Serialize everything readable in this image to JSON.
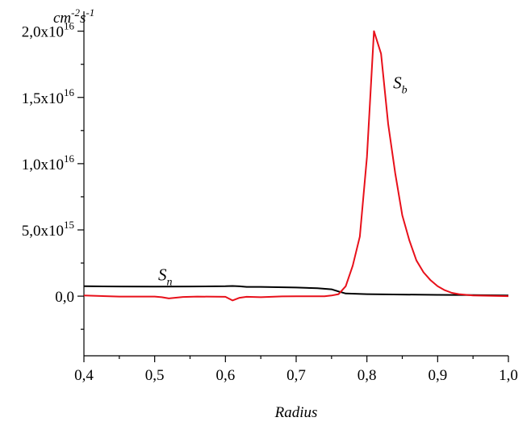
{
  "chart_data": {
    "type": "line",
    "xlabel": "Radius",
    "ylabel_units": {
      "base1": "cm",
      "exp1": "-2",
      "base2": "s",
      "exp2": "-1"
    },
    "xlim": [
      0.4,
      1.0
    ],
    "ylim": [
      -4500000000000000.0,
      2.15e+16
    ],
    "grid": false,
    "x_ticks": [
      {
        "value": 0.4,
        "label": "0,4"
      },
      {
        "value": 0.5,
        "label": "0,5"
      },
      {
        "value": 0.6,
        "label": "0,6"
      },
      {
        "value": 0.7,
        "label": "0,7"
      },
      {
        "value": 0.8,
        "label": "0,8"
      },
      {
        "value": 0.9,
        "label": "0,9"
      },
      {
        "value": 1.0,
        "label": "1,0"
      }
    ],
    "y_ticks": [
      {
        "value": 0,
        "mant": "0,0",
        "exp": ""
      },
      {
        "value": 5000000000000000.0,
        "mant": "5,0x10",
        "exp": "15"
      },
      {
        "value": 1e+16,
        "mant": "1,0x10",
        "exp": "16"
      },
      {
        "value": 1.5e+16,
        "mant": "1,5x10",
        "exp": "16"
      },
      {
        "value": 2e+16,
        "mant": "2,0x10",
        "exp": "16"
      }
    ],
    "series": [
      {
        "name_base": "S",
        "name_sub": "n",
        "color": "#000000",
        "label_at": [
          0.505,
          1200000000000000.0
        ],
        "x": [
          0.4,
          0.45,
          0.5,
          0.55,
          0.6,
          0.61,
          0.62,
          0.63,
          0.65,
          0.7,
          0.73,
          0.75,
          0.76,
          0.77,
          0.8,
          0.85,
          0.9,
          0.95,
          1.0
        ],
        "y": [
          750000000000000.0,
          730000000000000.0,
          720000000000000.0,
          730000000000000.0,
          750000000000000.0,
          770000000000000.0,
          740000000000000.0,
          700000000000000.0,
          700000000000000.0,
          650000000000000.0,
          600000000000000.0,
          520000000000000.0,
          350000000000000.0,
          200000000000000.0,
          150000000000000.0,
          120000000000000.0,
          100000000000000.0,
          80000000000000.0,
          50000000000000.0
        ]
      },
      {
        "name_base": "S",
        "name_sub": "b",
        "color": "#e8101a",
        "label_at": [
          0.837,
          1.57e+16
        ],
        "x": [
          0.4,
          0.45,
          0.5,
          0.51,
          0.52,
          0.54,
          0.56,
          0.6,
          0.61,
          0.62,
          0.63,
          0.65,
          0.68,
          0.7,
          0.74,
          0.75,
          0.76,
          0.77,
          0.78,
          0.79,
          0.8,
          0.81,
          0.82,
          0.83,
          0.84,
          0.85,
          0.86,
          0.87,
          0.88,
          0.89,
          0.9,
          0.91,
          0.92,
          0.93,
          0.95,
          1.0
        ],
        "y": [
          50000000000000.0,
          -30000000000000.0,
          -30000000000000.0,
          -80000000000000.0,
          -170000000000000.0,
          -60000000000000.0,
          -30000000000000.0,
          -50000000000000.0,
          -320000000000000.0,
          -120000000000000.0,
          -50000000000000.0,
          -80000000000000.0,
          -20000000000000.0,
          -10000000000000.0,
          -10000000000000.0,
          50000000000000.0,
          150000000000000.0,
          750000000000000.0,
          2300000000000000.0,
          4500000000000000.0,
          1.05e+16,
          2e+16,
          1.83e+16,
          1.3e+16,
          9300000000000000.0,
          6100000000000000.0,
          4200000000000000.0,
          2700000000000000.0,
          1800000000000000.0,
          1200000000000000.0,
          750000000000000.0,
          450000000000000.0,
          250000000000000.0,
          150000000000000.0,
          50000000000000.0,
          0
        ]
      }
    ]
  }
}
